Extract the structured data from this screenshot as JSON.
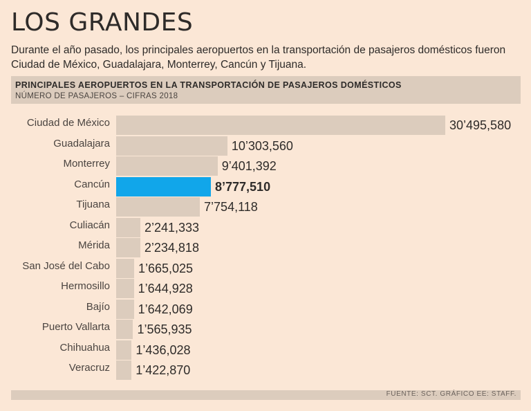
{
  "header": {
    "title": "LOS GRANDES",
    "subtitle": "Durante el año pasado, los principales aeropuertos en la transportación de pasajeros domésticos fueron Ciudad de México, Guadalajara, Monterrey, Cancún y Tijuana."
  },
  "chart_data": {
    "type": "bar",
    "orientation": "horizontal",
    "title": "PRINCIPALES AEROPUERTOS EN LA TRANSPORTACIÓN DE PASAJEROS DOMÉSTICOS",
    "subtitle": "NÚMERO DE PASAJEROS – CIFRAS 2018",
    "categories": [
      "Ciudad de México",
      "Guadalajara",
      "Monterrey",
      "Cancún",
      "Tijuana",
      "Culiacán",
      "Mérida",
      "San José del Cabo",
      "Hermosillo",
      "Bajío",
      "Puerto Vallarta",
      "Chihuahua",
      "Veracruz"
    ],
    "values": [
      30495580,
      10303560,
      9401392,
      8777510,
      7754118,
      2241333,
      2234818,
      1665025,
      1644928,
      1642069,
      1565935,
      1436028,
      1422870
    ],
    "value_labels": [
      "30’495,580",
      "10’303,560",
      "9’401,392",
      "8’777,510",
      "7’754,118",
      "2’241,333",
      "2’234,818",
      "1’665,025",
      "1’644,928",
      "1’642,069",
      "1’565,935",
      "1’436,028",
      "1’422,870"
    ],
    "highlight_category": "Cancún",
    "colors": {
      "bar": "#dcccbd",
      "highlight": "#11a6ea"
    },
    "xlim": [
      0,
      30495580
    ]
  },
  "footer": {
    "source": "FUENTE: SCT. GRÁFICO EE: STAFF."
  }
}
